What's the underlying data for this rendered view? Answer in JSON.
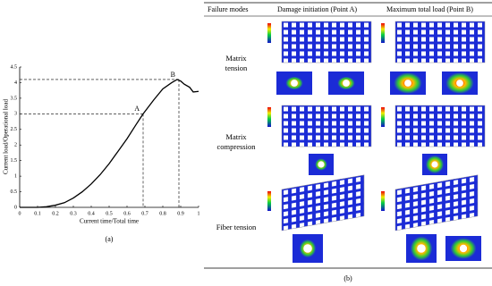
{
  "chart_data": {
    "type": "line",
    "caption": "(a)",
    "x_label": "Current time/Total time",
    "y_label": "Current load/Operational load",
    "x": [
      0,
      0.1,
      0.15,
      0.2,
      0.25,
      0.3,
      0.35,
      0.4,
      0.45,
      0.5,
      0.55,
      0.6,
      0.65,
      0.69,
      0.75,
      0.8,
      0.85,
      0.88,
      0.9,
      0.92,
      0.95,
      0.97,
      1.0
    ],
    "series": [
      {
        "color": "#000000",
        "values": [
          0,
          0,
          0.02,
          0.07,
          0.15,
          0.3,
          0.5,
          0.75,
          1.05,
          1.4,
          1.8,
          2.2,
          2.65,
          3.0,
          3.45,
          3.8,
          4.0,
          4.1,
          4.05,
          3.95,
          3.85,
          3.7,
          3.72
        ]
      }
    ],
    "annotations": [
      {
        "label": "A",
        "x": 0.69,
        "y": 3.0
      },
      {
        "label": "B",
        "x": 0.89,
        "y": 4.1
      }
    ],
    "xlim": [
      0,
      1
    ],
    "ylim": [
      0,
      4.5
    ],
    "xticks": [
      0,
      0.1,
      0.2,
      0.3,
      0.4,
      0.5,
      0.6,
      0.7,
      0.8,
      0.9,
      1
    ],
    "yticks": [
      0,
      0.5,
      1,
      1.5,
      2,
      2.5,
      3,
      3.5,
      4,
      4.5
    ]
  },
  "table": {
    "header": [
      "Failure modes",
      "Damage initiation (Point A)",
      "Maximum total load (Point B)"
    ],
    "rows": [
      [
        "Matrix tension"
      ],
      [
        "Matrix compression"
      ],
      [
        "Fiber tension"
      ]
    ],
    "caption": "(b)"
  }
}
